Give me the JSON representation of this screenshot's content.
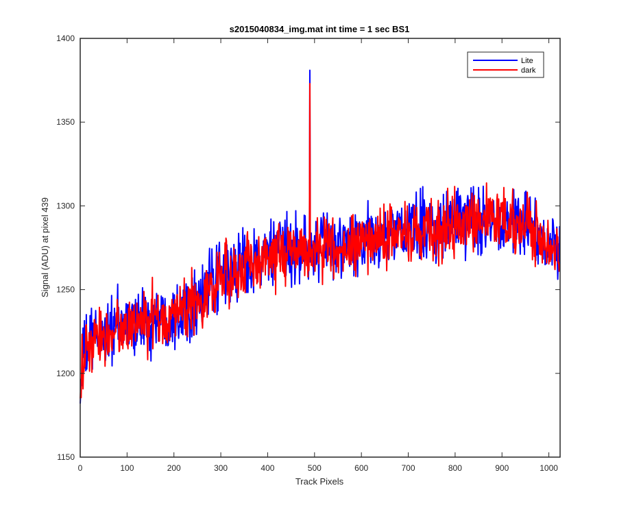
{
  "chart_data": {
    "type": "line",
    "title": "s2015040834_img.mat int time = 1 sec   BS1",
    "xlabel": "Track Pixels",
    "ylabel": "Signal (ADU) at pixel 439",
    "xlim": [
      0,
      1024
    ],
    "ylim": [
      1150,
      1400
    ],
    "xticks": [
      0,
      100,
      200,
      300,
      400,
      500,
      600,
      700,
      800,
      900,
      1000
    ],
    "yticks": [
      1150,
      1200,
      1250,
      1300,
      1350,
      1400
    ],
    "grid": false,
    "legend_position": "top-right",
    "x_count": 1024,
    "trend_x": [
      0,
      5,
      20,
      50,
      100,
      150,
      200,
      250,
      300,
      350,
      400,
      450,
      500,
      550,
      600,
      650,
      700,
      750,
      800,
      850,
      900,
      950,
      1000,
      1023
    ],
    "series": [
      {
        "name": "Lite",
        "color": "#0000ff",
        "trend_y": [
          1192,
          1210,
          1218,
          1225,
          1229,
          1232,
          1236,
          1244,
          1257,
          1266,
          1271,
          1274,
          1275,
          1276,
          1278,
          1282,
          1286,
          1287,
          1290,
          1292,
          1293,
          1289,
          1276,
          1270
        ],
        "noise_amplitude": 10,
        "spikes": [
          {
            "x": 0,
            "y": 1182
          },
          {
            "x": 1,
            "y": 1188
          },
          {
            "x": 490,
            "y": 1381
          }
        ]
      },
      {
        "name": "dark",
        "color": "#ff0000",
        "trend_y": [
          1189,
          1207,
          1216,
          1223,
          1228,
          1231,
          1235,
          1243,
          1256,
          1265,
          1270,
          1273,
          1274,
          1275,
          1277,
          1281,
          1285,
          1286,
          1289,
          1291,
          1292,
          1288,
          1275,
          1269
        ],
        "noise_amplitude": 9,
        "spikes": [
          {
            "x": 0,
            "y": 1185
          },
          {
            "x": 490,
            "y": 1373
          }
        ]
      }
    ]
  }
}
